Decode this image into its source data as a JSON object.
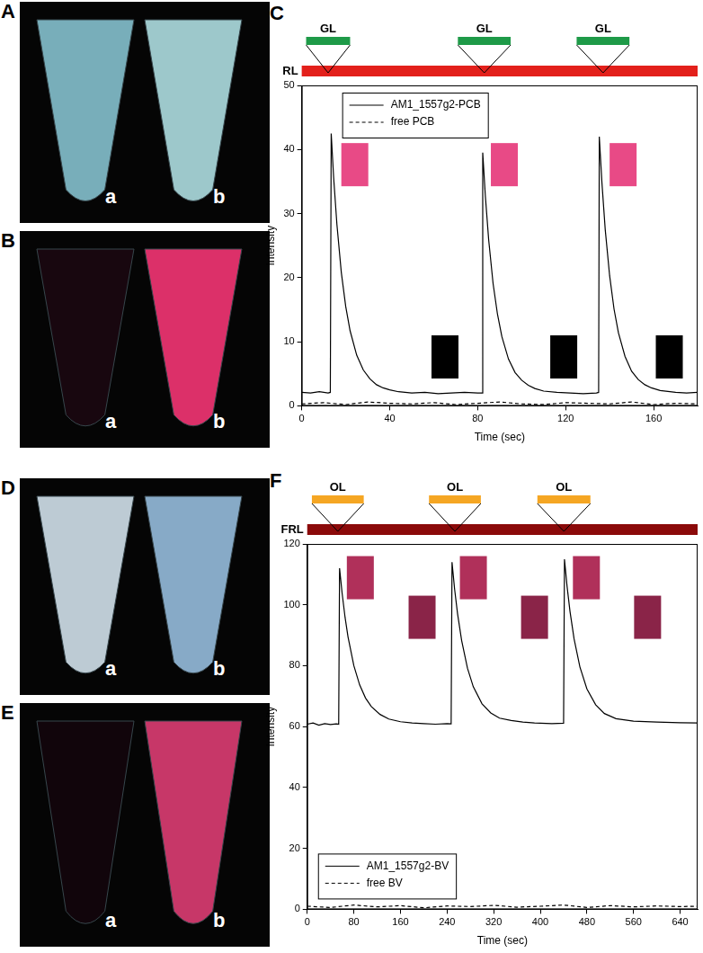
{
  "panels": [
    {
      "label": "A",
      "tubes": [
        {
          "label": "a",
          "color": "#7fb8c4"
        },
        {
          "label": "b",
          "color": "#a6d3d6"
        }
      ]
    },
    {
      "label": "B",
      "tubes": [
        {
          "label": "a",
          "color": "#1a0810"
        },
        {
          "label": "b",
          "color": "#e8336f"
        }
      ]
    },
    {
      "label": "D",
      "tubes": [
        {
          "label": "a",
          "color": "#c7d6e0"
        },
        {
          "label": "b",
          "color": "#8fb3d2"
        }
      ]
    },
    {
      "label": "E",
      "tubes": [
        {
          "label": "a",
          "color": "#12060c"
        },
        {
          "label": "b",
          "color": "#d23a6e"
        }
      ]
    }
  ],
  "chart_data": [
    {
      "type": "line",
      "panel": "C",
      "x_label": "Time (sec)",
      "y_label": "Intensity",
      "xlim": [
        0,
        180
      ],
      "ylim": [
        0,
        50
      ],
      "xticks": [
        0,
        40,
        80,
        120,
        160
      ],
      "yticks": [
        0,
        10,
        20,
        30,
        40,
        50
      ],
      "grid": false,
      "legend": "top-left",
      "series": [
        {
          "name": "AM1_1557g2-PCB",
          "color": "#000000",
          "line_style": "solid",
          "x": [
            0,
            4,
            8,
            12,
            13,
            13.4,
            14.5,
            16,
            18,
            20,
            22,
            25,
            28,
            31,
            34,
            37,
            40,
            44,
            50,
            56,
            62,
            68,
            74,
            80,
            82,
            82.3,
            83.5,
            85,
            87,
            89,
            91,
            94,
            97,
            100,
            103,
            106,
            110,
            116,
            122,
            128,
            134,
            135,
            135.3,
            136.5,
            138,
            140,
            142,
            144,
            147,
            150,
            153,
            156,
            159,
            163,
            170,
            175,
            180
          ],
          "values": [
            2.1,
            2.0,
            2.2,
            2.0,
            2.1,
            42.5,
            35.7,
            28.3,
            20.8,
            15.5,
            11.7,
            7.9,
            5.6,
            4.2,
            3.3,
            2.8,
            2.5,
            2.2,
            2.0,
            2.1,
            1.9,
            2.0,
            2.1,
            2.0,
            2.0,
            39.5,
            32.7,
            25.9,
            19.1,
            14.3,
            10.8,
            7.3,
            5.2,
            4.0,
            3.2,
            2.7,
            2.3,
            2.1,
            2.0,
            1.9,
            2.0,
            2.1,
            42.0,
            34.8,
            27.5,
            20.3,
            15.1,
            11.4,
            7.7,
            5.4,
            4.1,
            3.3,
            2.8,
            2.4,
            2.1,
            2.0,
            2.1
          ]
        },
        {
          "name": "free PCB",
          "color": "#000000",
          "line_style": "dashed",
          "x": [
            0,
            10,
            20,
            30,
            40,
            50,
            60,
            70,
            80,
            90,
            100,
            110,
            120,
            130,
            140,
            150,
            160,
            170,
            180
          ],
          "values": [
            0.3,
            0.5,
            0.2,
            0.6,
            0.4,
            0.3,
            0.5,
            0.2,
            0.4,
            0.6,
            0.3,
            0.2,
            0.5,
            0.4,
            0.3,
            0.6,
            0.2,
            0.4,
            0.3
          ]
        }
      ],
      "light_bars": [
        {
          "name": "RL",
          "color": "#e3201b",
          "intervals": [
            [
              0,
              180
            ]
          ]
        },
        {
          "name": "GL",
          "color": "#1e9a48",
          "intervals": [
            [
              2,
              22
            ],
            [
              71,
              95
            ],
            [
              125,
              149
            ]
          ]
        }
      ],
      "insets": [
        {
          "x": 18,
          "y": 41,
          "color": "#e84a86"
        },
        {
          "x": 86,
          "y": 41,
          "color": "#e84a86"
        },
        {
          "x": 140,
          "y": 41,
          "color": "#e84a86"
        },
        {
          "x": 59,
          "y": 11,
          "color": "#000000"
        },
        {
          "x": 113,
          "y": 11,
          "color": "#000000"
        },
        {
          "x": 161,
          "y": 11,
          "color": "#000000"
        }
      ]
    },
    {
      "type": "line",
      "panel": "F",
      "x_label": "Time (sec)",
      "y_label": "Intensity",
      "xlim": [
        0,
        670
      ],
      "ylim": [
        0,
        120
      ],
      "xticks": [
        0,
        80,
        160,
        240,
        320,
        400,
        480,
        560,
        640
      ],
      "yticks": [
        0,
        20,
        40,
        60,
        80,
        100,
        120
      ],
      "grid": false,
      "legend": "bottom-left",
      "series": [
        {
          "name": "AM1_1557g2-BV",
          "color": "#000000",
          "line_style": "solid",
          "x": [
            0,
            10,
            20,
            30,
            40,
            50,
            54,
            55.5,
            60,
            65,
            70,
            80,
            90,
            100,
            110,
            125,
            140,
            160,
            180,
            200,
            220,
            240,
            247,
            248.5,
            253,
            258,
            265,
            275,
            285,
            300,
            315,
            330,
            350,
            370,
            390,
            420,
            440,
            441.5,
            446,
            451,
            458,
            468,
            480,
            495,
            510,
            530,
            560,
            600,
            640,
            670
          ],
          "values": [
            60.8,
            61.2,
            60.5,
            61.0,
            60.7,
            60.9,
            60.8,
            112.0,
            103.6,
            95.8,
            89.5,
            80.0,
            73.7,
            69.4,
            66.6,
            64.0,
            62.5,
            61.6,
            61.2,
            61.0,
            60.8,
            61.0,
            60.9,
            114.0,
            105.1,
            97.1,
            88.3,
            79.2,
            73.1,
            67.5,
            64.5,
            62.8,
            62.0,
            61.5,
            61.2,
            61.0,
            61.1,
            115.0,
            106.0,
            97.8,
            88.8,
            79.6,
            72.4,
            67.2,
            64.3,
            62.6,
            61.8,
            61.5,
            61.3,
            61.2
          ]
        },
        {
          "name": "free BV",
          "color": "#000000",
          "line_style": "dashed",
          "x": [
            0,
            40,
            80,
            120,
            160,
            200,
            240,
            280,
            320,
            360,
            400,
            440,
            480,
            520,
            560,
            600,
            640,
            670
          ],
          "values": [
            1.0,
            0.6,
            1.4,
            0.8,
            1.2,
            0.5,
            1.1,
            0.9,
            1.3,
            0.7,
            1.0,
            1.4,
            0.6,
            1.2,
            0.8,
            1.1,
            0.9,
            1.0
          ]
        }
      ],
      "light_bars": [
        {
          "name": "FRL",
          "color": "#8b0a0a",
          "intervals": [
            [
              0,
              670
            ]
          ]
        },
        {
          "name": "OL",
          "color": "#f5a623",
          "intervals": [
            [
              8,
              97
            ],
            [
              209,
              298
            ],
            [
              395,
              486
            ]
          ]
        }
      ],
      "insets": [
        {
          "x": 68,
          "y": 116,
          "color": "#b0305a"
        },
        {
          "x": 262,
          "y": 116,
          "color": "#b0305a"
        },
        {
          "x": 456,
          "y": 116,
          "color": "#b0305a"
        },
        {
          "x": 174,
          "y": 103,
          "color": "#8a2448"
        },
        {
          "x": 367,
          "y": 103,
          "color": "#8a2448"
        },
        {
          "x": 561,
          "y": 103,
          "color": "#8a2448"
        }
      ]
    }
  ]
}
